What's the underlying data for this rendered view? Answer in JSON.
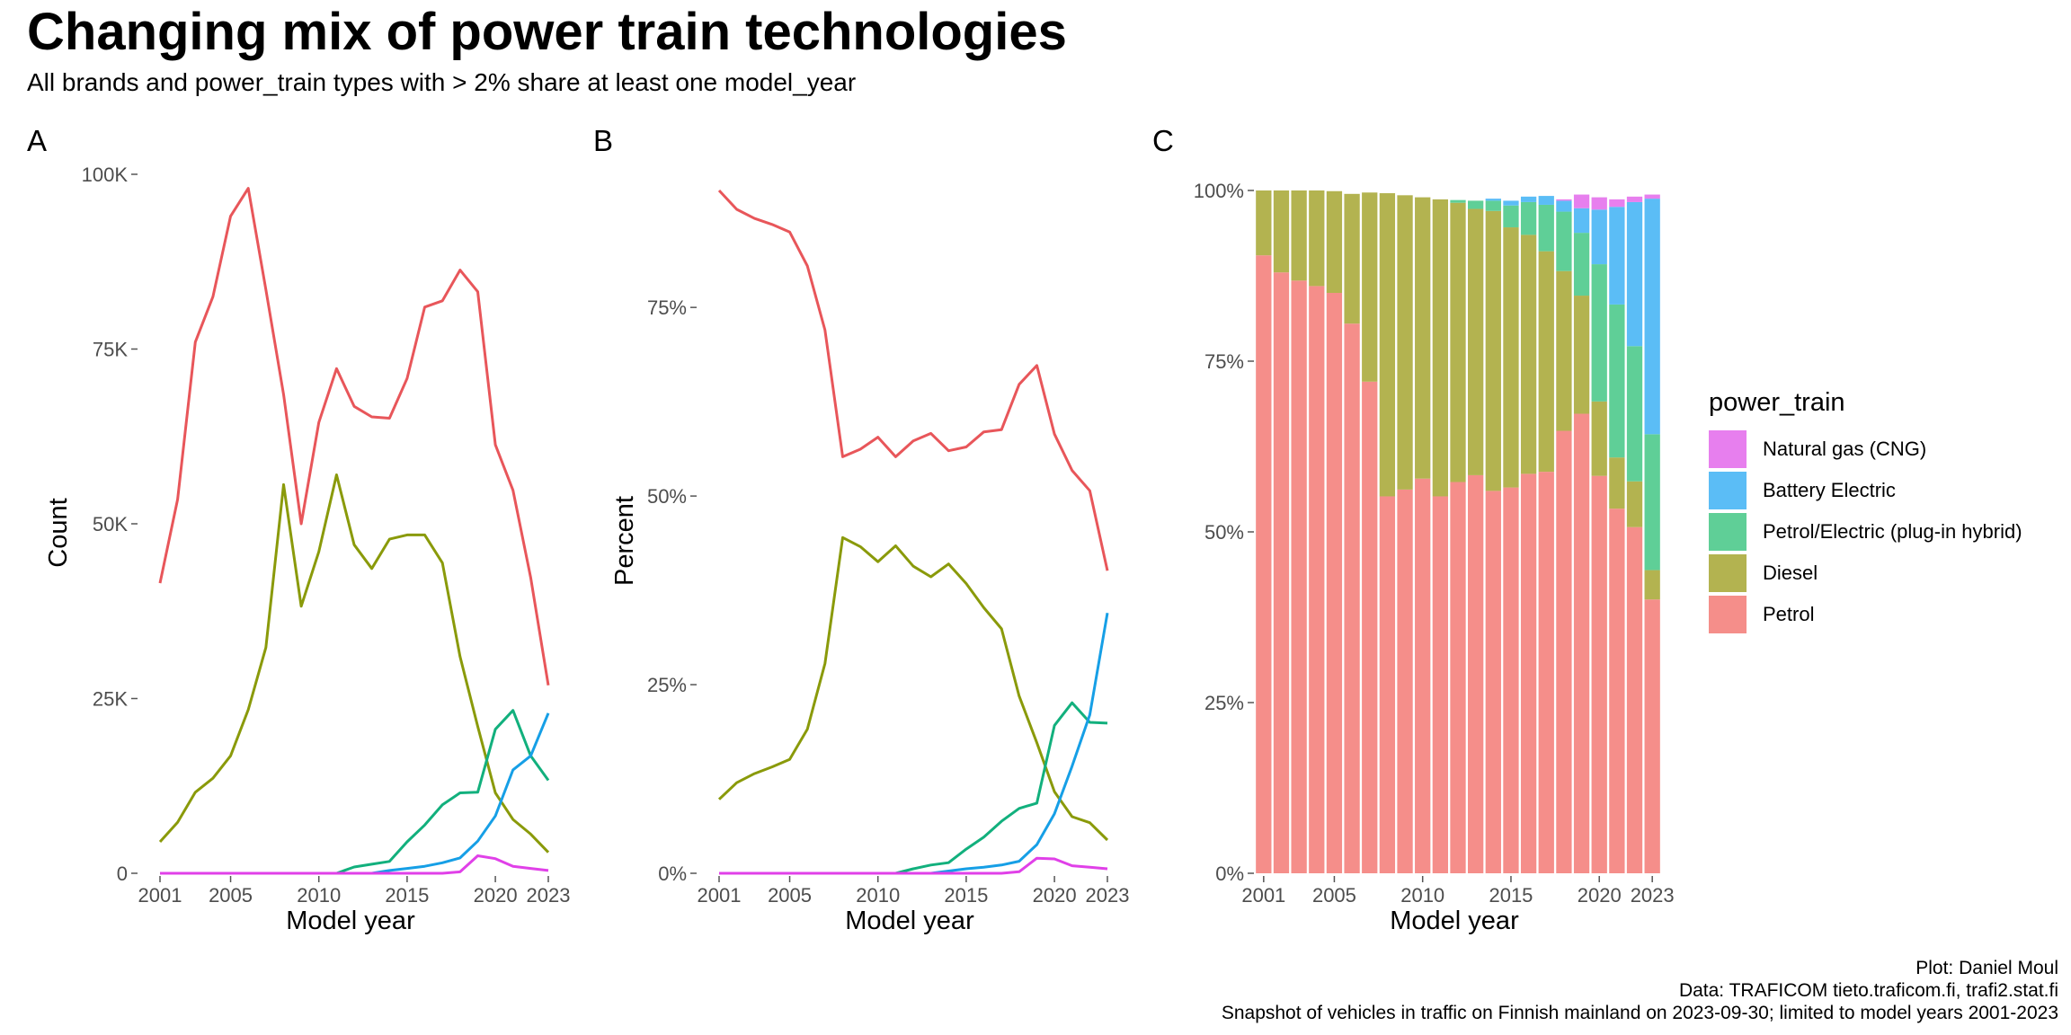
{
  "title": "Changing mix of power train technologies",
  "subtitle": "All brands and power_train types with > 2% share at least one model_year",
  "caption": {
    "line1": "Plot: Daniel Moul",
    "line2": "Data: TRAFICOM tieto.traficom.fi, trafi2.stat.fi",
    "line3": "Snapshot of vehicles in traffic on Finnish mainland on 2023-09-30; limited to model years 2001-2023"
  },
  "legend": {
    "title": "power_train",
    "items": [
      {
        "label": "Natural gas (CNG)",
        "color": "#E77FEE"
      },
      {
        "label": "Battery Electric",
        "color": "#5BBDF6"
      },
      {
        "label": "Petrol/Electric (plug-in hybrid)",
        "color": "#5FCF97"
      },
      {
        "label": "Diesel",
        "color": "#B3B350"
      },
      {
        "label": "Petrol",
        "color": "#F58E8A"
      }
    ]
  },
  "chart_data": [
    {
      "panel": "A",
      "type": "line",
      "xlabel": "Model year",
      "ylabel": "Count",
      "xlim": [
        2001,
        2023
      ],
      "ylim": [
        0,
        100000
      ],
      "x_ticks": [
        "2001",
        "2005",
        "2010",
        "2015",
        "2020",
        "2023"
      ],
      "y_ticks": [
        "0",
        "25K",
        "50K",
        "75K",
        "100K"
      ],
      "x": [
        2001,
        2002,
        2003,
        2004,
        2005,
        2006,
        2007,
        2008,
        2009,
        2010,
        2011,
        2012,
        2013,
        2014,
        2015,
        2016,
        2017,
        2018,
        2019,
        2020,
        2021,
        2022,
        2023
      ],
      "series": [
        {
          "name": "Petrol",
          "color": "#E8565A",
          "values": [
            41500,
            53500,
            76000,
            82500,
            94000,
            98000,
            83500,
            68500,
            50000,
            64500,
            72200,
            66800,
            65300,
            65100,
            70800,
            81000,
            81900,
            86300,
            83200,
            61300,
            54800,
            42300,
            26900
          ]
        },
        {
          "name": "Diesel",
          "color": "#8A9A0A",
          "values": [
            4500,
            7300,
            11600,
            13600,
            16800,
            23400,
            32300,
            55600,
            38200,
            46000,
            57000,
            47000,
            43600,
            47800,
            48400,
            48400,
            44400,
            31000,
            21000,
            11500,
            7700,
            5600,
            3000
          ]
        },
        {
          "name": "Petrol/Electric (plug-in hybrid)",
          "color": "#12B07D",
          "values": [
            0,
            0,
            0,
            0,
            0,
            0,
            0,
            0,
            0,
            0,
            0,
            900,
            1300,
            1700,
            4500,
            6900,
            9800,
            11500,
            11600,
            20600,
            23300,
            16800,
            13300
          ]
        },
        {
          "name": "Battery Electric",
          "color": "#169FE6",
          "values": [
            0,
            0,
            0,
            0,
            0,
            0,
            0,
            0,
            0,
            0,
            0,
            0,
            0,
            400,
            700,
            1000,
            1500,
            2200,
            4600,
            8200,
            14800,
            16800,
            22900
          ]
        },
        {
          "name": "Natural gas (CNG)",
          "color": "#E040E8",
          "values": [
            0,
            0,
            0,
            0,
            0,
            0,
            0,
            0,
            0,
            0,
            0,
            0,
            0,
            0,
            0,
            0,
            0,
            200,
            2500,
            2100,
            1000,
            700,
            400
          ]
        }
      ]
    },
    {
      "panel": "B",
      "type": "line",
      "xlabel": "Model year",
      "ylabel": "Percent",
      "xlim": [
        2001,
        2023
      ],
      "ylim": [
        0,
        90.5
      ],
      "x_ticks": [
        "2001",
        "2005",
        "2010",
        "2015",
        "2020",
        "2023"
      ],
      "y_ticks": [
        "0%",
        "25%",
        "50%",
        "75%"
      ],
      "x": [
        2001,
        2002,
        2003,
        2004,
        2005,
        2006,
        2007,
        2008,
        2009,
        2010,
        2011,
        2012,
        2013,
        2014,
        2015,
        2016,
        2017,
        2018,
        2019,
        2020,
        2021,
        2022,
        2023
      ],
      "series": [
        {
          "name": "Petrol",
          "color": "#E8565A",
          "values": [
            90.5,
            88.0,
            86.8,
            86.0,
            85.0,
            80.5,
            72.0,
            55.2,
            56.2,
            57.8,
            55.2,
            57.3,
            58.3,
            56.0,
            56.5,
            58.5,
            58.8,
            64.8,
            67.3,
            58.2,
            53.4,
            50.7,
            40.1
          ]
        },
        {
          "name": "Diesel",
          "color": "#8A9A0A",
          "values": [
            9.8,
            12.0,
            13.2,
            14.1,
            15.1,
            19.1,
            27.8,
            44.5,
            43.3,
            41.3,
            43.4,
            40.7,
            39.3,
            41.0,
            38.4,
            35.2,
            32.4,
            23.5,
            17.3,
            10.8,
            7.5,
            6.7,
            4.4
          ]
        },
        {
          "name": "Petrol/Electric (plug-in hybrid)",
          "color": "#12B07D",
          "values": [
            0,
            0,
            0,
            0,
            0,
            0,
            0,
            0,
            0,
            0,
            0,
            0.6,
            1.1,
            1.4,
            3.2,
            4.8,
            6.9,
            8.6,
            9.3,
            19.6,
            22.6,
            20.0,
            19.9
          ]
        },
        {
          "name": "Battery Electric",
          "color": "#169FE6",
          "values": [
            0,
            0,
            0,
            0,
            0,
            0,
            0,
            0,
            0,
            0,
            0,
            0,
            0,
            0.3,
            0.6,
            0.8,
            1.1,
            1.6,
            3.8,
            7.9,
            14.2,
            21.0,
            34.5
          ]
        },
        {
          "name": "Natural gas (CNG)",
          "color": "#E040E8",
          "values": [
            0,
            0,
            0,
            0,
            0,
            0,
            0,
            0,
            0,
            0,
            0,
            0,
            0,
            0,
            0,
            0,
            0,
            0.2,
            2.0,
            1.9,
            1.0,
            0.8,
            0.6
          ]
        }
      ]
    },
    {
      "panel": "C",
      "type": "bar",
      "stacked": true,
      "xlabel": "Model year",
      "ylabel": "",
      "ylim": [
        0,
        100
      ],
      "x_ticks": [
        "2001",
        "2005",
        "2010",
        "2015",
        "2020",
        "2023"
      ],
      "y_ticks": [
        "0%",
        "25%",
        "50%",
        "75%",
        "100%"
      ],
      "x": [
        2001,
        2002,
        2003,
        2004,
        2005,
        2006,
        2007,
        2008,
        2009,
        2010,
        2011,
        2012,
        2013,
        2014,
        2015,
        2016,
        2017,
        2018,
        2019,
        2020,
        2021,
        2022,
        2023
      ],
      "series": [
        {
          "name": "Petrol",
          "color": "#F58E8A",
          "values": [
            90.5,
            88.0,
            86.8,
            86.0,
            85.0,
            80.5,
            72.0,
            55.2,
            56.2,
            57.8,
            55.2,
            57.3,
            58.3,
            56.0,
            56.5,
            58.5,
            58.8,
            64.8,
            67.3,
            58.2,
            53.4,
            50.7,
            40.1
          ]
        },
        {
          "name": "Diesel",
          "color": "#B3B350",
          "values": [
            9.5,
            12.0,
            13.2,
            14.0,
            14.9,
            19.0,
            27.7,
            44.4,
            43.1,
            41.2,
            43.5,
            40.9,
            39.0,
            41.0,
            38.1,
            35.0,
            32.3,
            23.4,
            17.3,
            10.9,
            7.5,
            6.7,
            4.3
          ]
        },
        {
          "name": "Petrol/Electric (plug-in hybrid)",
          "color": "#5FCF97",
          "values": [
            0,
            0,
            0,
            0,
            0,
            0,
            0,
            0,
            0,
            0,
            0,
            0.4,
            1.2,
            1.5,
            3.2,
            4.8,
            6.8,
            8.7,
            9.2,
            20.1,
            22.4,
            19.8,
            19.9
          ]
        },
        {
          "name": "Battery Electric",
          "color": "#5BBDF6",
          "values": [
            0,
            0,
            0,
            0,
            0,
            0,
            0,
            0,
            0,
            0,
            0,
            0,
            0,
            0.3,
            0.7,
            0.8,
            1.3,
            1.6,
            3.6,
            8.0,
            14.3,
            21.1,
            34.5
          ]
        },
        {
          "name": "Natural gas (CNG)",
          "color": "#E77FEE",
          "values": [
            0,
            0,
            0,
            0,
            0,
            0,
            0,
            0,
            0,
            0,
            0,
            0,
            0,
            0,
            0,
            0,
            0,
            0.2,
            2.0,
            1.8,
            1.1,
            0.8,
            0.6
          ]
        }
      ]
    }
  ]
}
